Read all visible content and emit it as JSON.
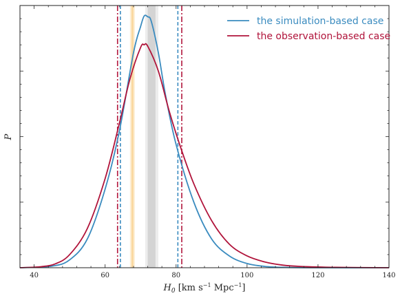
{
  "chart_data": {
    "type": "line",
    "xlabel": "H_0 [km s^-1 Mpc^-1]",
    "ylabel": "P",
    "xlim": [
      36,
      140
    ],
    "ylim": [
      0,
      1.0
    ],
    "x_ticks": [
      40,
      60,
      80,
      100,
      120,
      140
    ],
    "y_ticks_labeled": false,
    "grid": false,
    "legend_placement": "top-right",
    "series": [
      {
        "name": "the simulation-based case",
        "color": "#3a8bbf",
        "dashed_bounds": [
          64.3,
          80.5
        ],
        "points": [
          [
            36,
            0.0
          ],
          [
            45,
            0.006
          ],
          [
            50,
            0.03
          ],
          [
            55,
            0.11
          ],
          [
            60,
            0.3
          ],
          [
            64,
            0.52
          ],
          [
            68,
            0.82
          ],
          [
            70,
            0.92
          ],
          [
            71,
            0.96
          ],
          [
            72,
            0.957
          ],
          [
            73,
            0.94
          ],
          [
            75,
            0.82
          ],
          [
            77,
            0.66
          ],
          [
            80,
            0.47
          ],
          [
            85,
            0.25
          ],
          [
            90,
            0.11
          ],
          [
            95,
            0.045
          ],
          [
            100,
            0.016
          ],
          [
            105,
            0.005
          ],
          [
            110,
            0.0015
          ],
          [
            120,
            0.0
          ],
          [
            140,
            0.0
          ]
        ]
      },
      {
        "name": "the observation-based case",
        "color": "#b0133a",
        "dashed_bounds": [
          63.5,
          81.6
        ],
        "points": [
          [
            36,
            0.0
          ],
          [
            42,
            0.004
          ],
          [
            46,
            0.015
          ],
          [
            50,
            0.05
          ],
          [
            55,
            0.15
          ],
          [
            60,
            0.34
          ],
          [
            64,
            0.55
          ],
          [
            67,
            0.72
          ],
          [
            70,
            0.84
          ],
          [
            71,
            0.85
          ],
          [
            72,
            0.845
          ],
          [
            75,
            0.75
          ],
          [
            78,
            0.6
          ],
          [
            81,
            0.47
          ],
          [
            85,
            0.32
          ],
          [
            90,
            0.18
          ],
          [
            95,
            0.09
          ],
          [
            100,
            0.045
          ],
          [
            105,
            0.022
          ],
          [
            110,
            0.01
          ],
          [
            115,
            0.005
          ],
          [
            125,
            0.0015
          ],
          [
            140,
            0.0
          ]
        ]
      }
    ],
    "bands": [
      {
        "color": "#f5a623",
        "lo": 67.0,
        "hi": 68.4,
        "inner_lo": 67.4,
        "inner_hi": 68.0
      },
      {
        "color": "#9a9a9a",
        "lo": 71.3,
        "hi": 75.0,
        "inner_lo": 72.0,
        "inner_hi": 74.2
      }
    ]
  }
}
